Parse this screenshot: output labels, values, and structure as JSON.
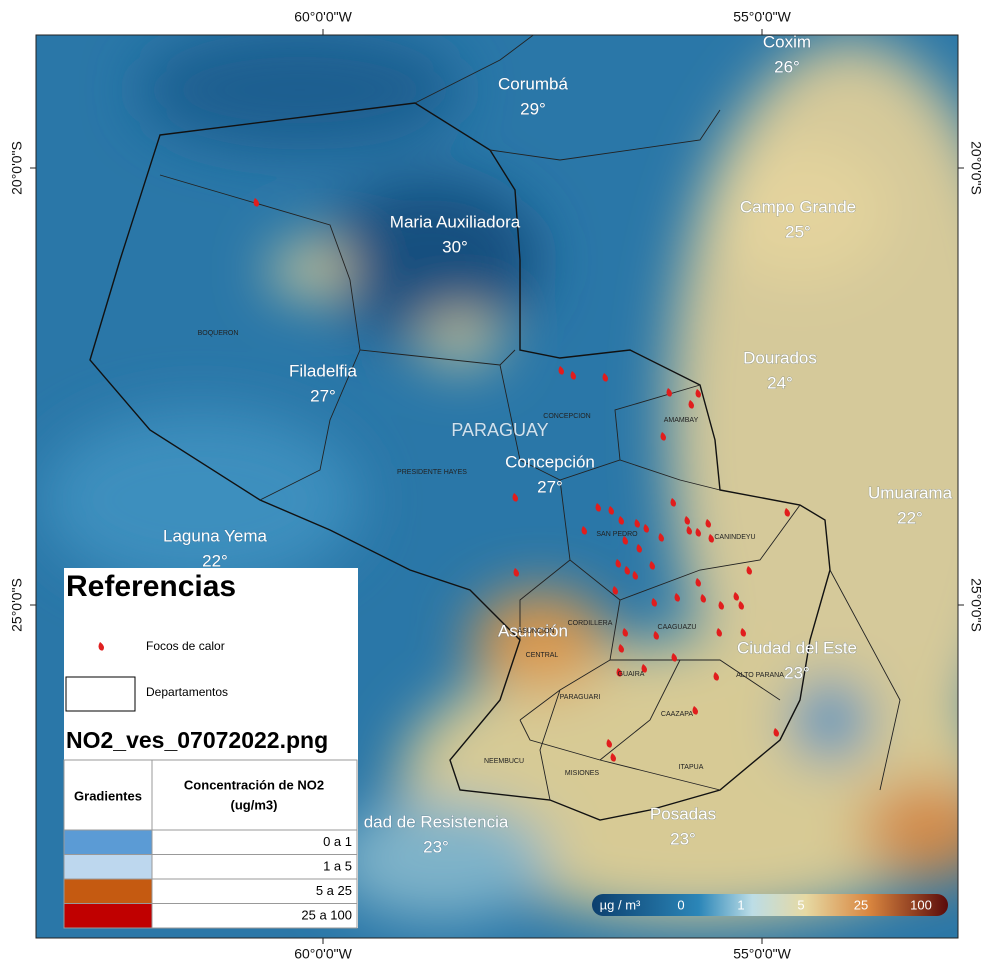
{
  "axes": {
    "top": [
      "60°0'0\"W",
      "55°0'0\"W"
    ],
    "bottom": [
      "60°0'0\"W",
      "55°0'0\"W"
    ],
    "left": [
      "20°0'0\"S",
      "25°0'0\"S"
    ],
    "right": [
      "20°0'0\"S",
      "25°0'0\"S"
    ]
  },
  "places": [
    {
      "name": "Corumbá",
      "temp": "29°"
    },
    {
      "name": "Coxim",
      "temp": "26°"
    },
    {
      "name": "Maria Auxiliadora",
      "temp": "30°"
    },
    {
      "name": "Campo Grande",
      "temp": "25°"
    },
    {
      "name": "Filadelfia",
      "temp": "27°"
    },
    {
      "name": "Dourados",
      "temp": "24°"
    },
    {
      "name": "Concepción",
      "temp": "27°"
    },
    {
      "name": "Umuarama",
      "temp": "22°"
    },
    {
      "name": "Laguna Yema",
      "temp": "22°"
    },
    {
      "name": "Ciudad del Este",
      "temp": "23°"
    },
    {
      "name": "dad de Resistencia",
      "temp": "23°"
    },
    {
      "name": "Posadas",
      "temp": "23°"
    }
  ],
  "other_places": [
    "Asunción"
  ],
  "country": "PARAGUAY",
  "departments": [
    "BOQUERON",
    "PRESIDENTE HAYES",
    "CONCEPCION",
    "AMAMBAY",
    "SAN PEDRO",
    "CANINDEYU",
    "CORDILLERA",
    "CAAGUAZU",
    "GUAIRA",
    "ALTO PARANA",
    "PARAGUARI",
    "CAAZAPA",
    "NEEMBUCU",
    "MISIONES",
    "ITAPUA",
    "CENTRAL",
    "ASUNCION"
  ],
  "legend": {
    "title": "Referencias",
    "items": [
      "Focos de calor",
      "Departamentos"
    ],
    "file": "NO2_ves_07072022.png",
    "table": {
      "col1": "Gradientes",
      "col2": [
        "Concentración de NO2",
        "(ug/m3)"
      ],
      "rows": [
        "0 a 1",
        "1 a 5",
        "5 a 25",
        "25 a 100"
      ]
    }
  },
  "colorbar": {
    "unit": "µg / m³",
    "labels": [
      "0",
      "1",
      "5",
      "25",
      "100"
    ]
  }
}
